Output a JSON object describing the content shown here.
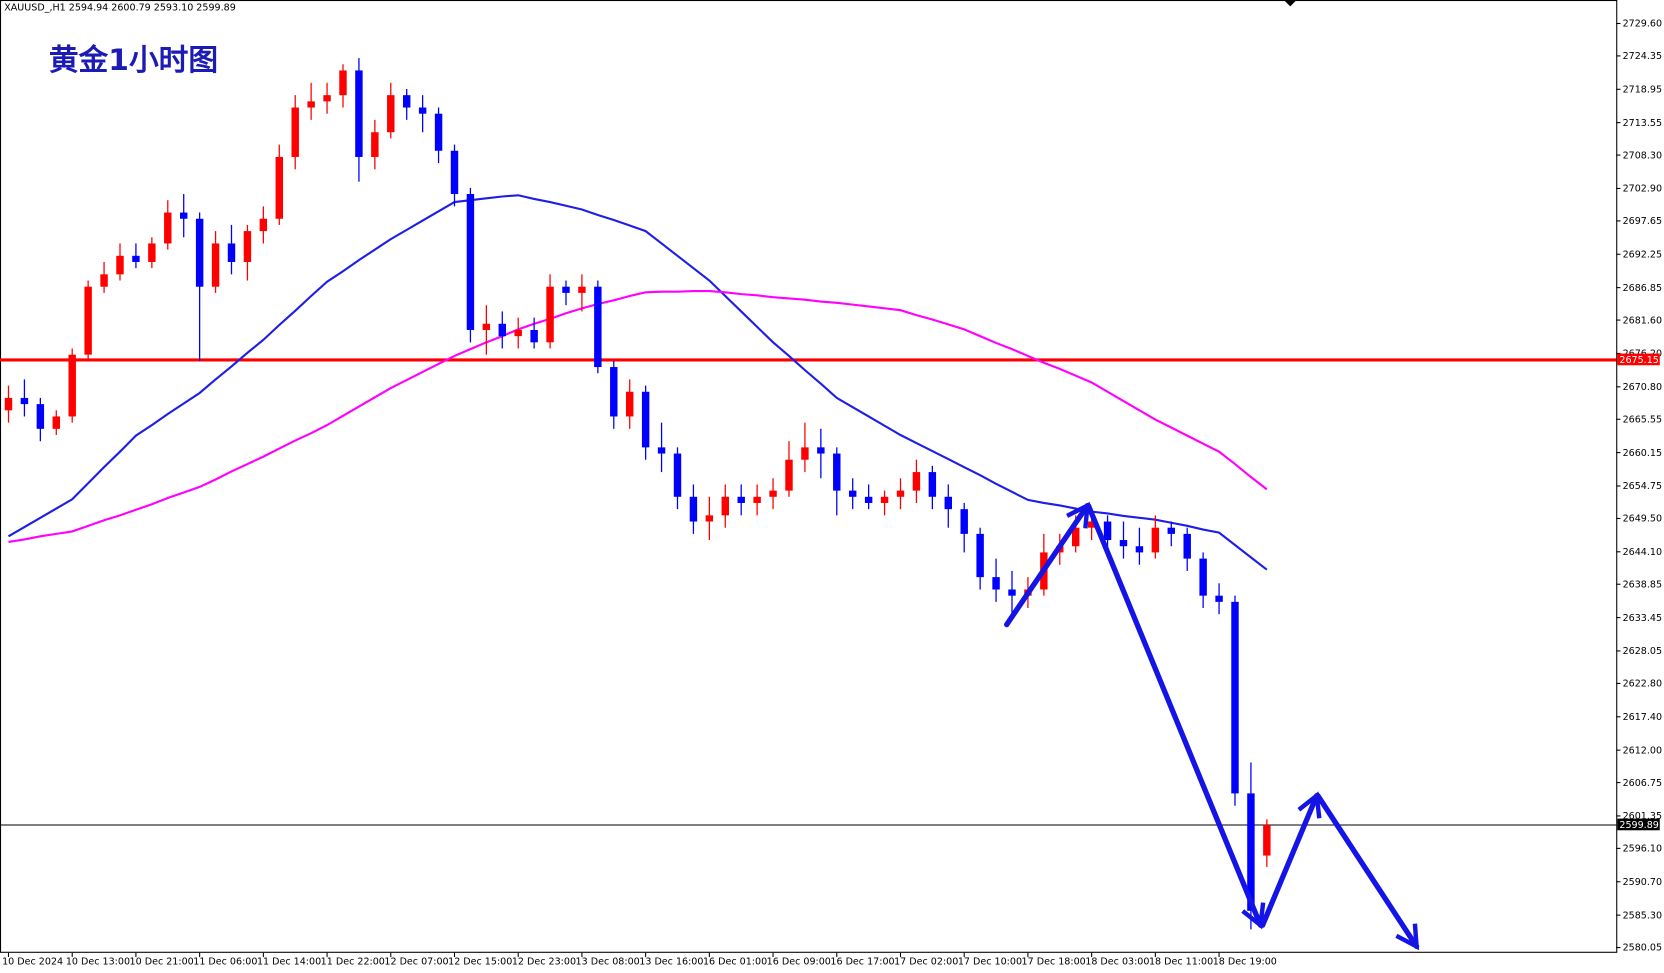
{
  "chart_data": {
    "type": "candlestick",
    "title": "黄金1小时图",
    "header": "XAUUSD_,H1  2594.94 2600.79 2593.10 2599.89",
    "up_color": "#ff0000",
    "down_color": "#0000ff",
    "ylim": [
      2579.2,
      2733.4
    ],
    "yticks": [
      {
        "value": 2729.6,
        "label": "2729.60"
      },
      2724.35,
      2718.95,
      2713.55,
      {
        "value": 2708.3,
        "label": "2708.30"
      },
      {
        "value": 2702.9,
        "label": "2702.90"
      },
      2697.65,
      2692.25,
      2686.85,
      {
        "value": 2681.6,
        "label": "2681.60"
      },
      {
        "value": 2676.2,
        "label": "2676.20"
      },
      {
        "value": 2670.8,
        "label": "2670.80"
      },
      2665.55,
      2660.15,
      2654.75,
      {
        "value": 2649.5,
        "label": "2649.50"
      },
      {
        "value": 2644.1,
        "label": "2644.10"
      },
      2638.85,
      2633.45,
      2628.05,
      {
        "value": 2622.8,
        "label": "2622.80"
      },
      {
        "value": 2617.4,
        "label": "2617.40"
      },
      {
        "value": 2612,
        "label": "2612.00"
      },
      2606.75,
      2601.35,
      {
        "value": 2596.1,
        "label": "2596.10"
      },
      {
        "value": 2590.7,
        "label": "2590.70"
      },
      {
        "value": 2585.3,
        "label": "2585.30"
      },
      2580.05
    ],
    "hlines": [
      {
        "value": 2675.15,
        "color": "#ff0000"
      },
      {
        "value": 2599.89,
        "color": "#000000"
      }
    ],
    "categories": [
      "10 Dec 2024",
      null,
      null,
      null,
      "10 Dec 13:00",
      null,
      null,
      null,
      "10 Dec 21:00",
      null,
      null,
      null,
      "11 Dec 06:00",
      null,
      null,
      null,
      "11 Dec 14:00",
      null,
      null,
      null,
      "11 Dec 22:00",
      null,
      null,
      null,
      "12 Dec 07:00",
      null,
      null,
      null,
      "12 Dec 15:00",
      null,
      null,
      null,
      "12 Dec 23:00",
      null,
      null,
      null,
      "13 Dec 08:00",
      null,
      null,
      null,
      "13 Dec 16:00",
      null,
      null,
      null,
      "16 Dec 01:00",
      null,
      null,
      null,
      "16 Dec 09:00",
      null,
      null,
      null,
      "16 Dec 17:00",
      null,
      null,
      null,
      "17 Dec 02:00",
      null,
      null,
      null,
      "17 Dec 10:00",
      null,
      null,
      null,
      "17 Dec 18:00",
      null,
      null,
      null,
      "18 Dec 03:00",
      null,
      null,
      null,
      "18 Dec 11:00",
      null,
      null,
      null,
      "18 Dec 19:00",
      null,
      null,
      null
    ],
    "ohlc": [
      [
        2667,
        2671,
        2665,
        2669
      ],
      [
        2669,
        2672,
        2666,
        2668
      ],
      [
        2668,
        2669,
        2662,
        2664
      ],
      [
        2664,
        2667,
        2663,
        2666
      ],
      [
        2666,
        2677,
        2665,
        2676
      ],
      [
        2676,
        2688,
        2675,
        2687
      ],
      [
        2687,
        2691,
        2686,
        2689
      ],
      [
        2689,
        2694,
        2688,
        2692
      ],
      [
        2692,
        2694,
        2690,
        2691
      ],
      [
        2691,
        2695,
        2690,
        2694
      ],
      [
        2694,
        2701,
        2693,
        2699
      ],
      [
        2699,
        2702,
        2695,
        2698
      ],
      [
        2698,
        2699,
        2675,
        2687
      ],
      [
        2687,
        2696,
        2686,
        2694
      ],
      [
        2694,
        2697,
        2689,
        2691
      ],
      [
        2691,
        2697,
        2688,
        2696
      ],
      [
        2696,
        2700,
        2694,
        2698
      ],
      [
        2698,
        2710,
        2697,
        2708
      ],
      [
        2708,
        2718,
        2706,
        2716
      ],
      [
        2716,
        2720,
        2714,
        2717
      ],
      [
        2717,
        2720,
        2715,
        2718
      ],
      [
        2718,
        2723,
        2716,
        2722
      ],
      [
        2722,
        2724,
        2704,
        2708
      ],
      [
        2708,
        2714,
        2706,
        2712
      ],
      [
        2712,
        2720,
        2711,
        2718
      ],
      [
        2718,
        2719,
        2714,
        2716
      ],
      [
        2716,
        2718,
        2712,
        2715
      ],
      [
        2715,
        2716,
        2707,
        2709
      ],
      [
        2709,
        2710,
        2700,
        2702
      ],
      [
        2702,
        2703,
        2678,
        2680
      ],
      [
        2680,
        2684,
        2676,
        2681
      ],
      [
        2681,
        2683,
        2677,
        2679
      ],
      [
        2679,
        2682,
        2677,
        2680
      ],
      [
        2680,
        2682,
        2677,
        2678
      ],
      [
        2678,
        2689,
        2677,
        2687
      ],
      [
        2687,
        2688,
        2684,
        2686
      ],
      [
        2686,
        2689,
        2683,
        2687
      ],
      [
        2687,
        2688,
        2673,
        2674
      ],
      [
        2674,
        2675,
        2664,
        2666
      ],
      [
        2666,
        2672,
        2664,
        2670
      ],
      [
        2670,
        2671,
        2659,
        2661
      ],
      [
        2661,
        2665,
        2657,
        2660
      ],
      [
        2660,
        2661,
        2651,
        2653
      ],
      [
        2653,
        2655,
        2647,
        2649
      ],
      [
        2649,
        2653,
        2646,
        2650
      ],
      [
        2650,
        2655,
        2648,
        2653
      ],
      [
        2653,
        2655,
        2650,
        2652
      ],
      [
        2652,
        2655,
        2650,
        2653
      ],
      [
        2653,
        2656,
        2651,
        2654
      ],
      [
        2654,
        2662,
        2653,
        2659
      ],
      [
        2659,
        2665,
        2657,
        2661
      ],
      [
        2661,
        2664,
        2656,
        2660
      ],
      [
        2660,
        2661,
        2650,
        2654
      ],
      [
        2654,
        2656,
        2651,
        2653
      ],
      [
        2653,
        2655,
        2651,
        2652
      ],
      [
        2652,
        2654,
        2650,
        2653
      ],
      [
        2653,
        2656,
        2651,
        2654
      ],
      [
        2654,
        2659,
        2652,
        2657
      ],
      [
        2657,
        2658,
        2651,
        2653
      ],
      [
        2653,
        2655,
        2648,
        2651
      ],
      [
        2651,
        2652,
        2644,
        2647
      ],
      [
        2647,
        2648,
        2638,
        2640
      ],
      [
        2640,
        2643,
        2636,
        2638
      ],
      [
        2638,
        2641,
        2634,
        2637
      ],
      [
        2637,
        2640,
        2635,
        2638
      ],
      [
        2638,
        2647,
        2637,
        2644
      ],
      [
        2644,
        2647,
        2642,
        2645
      ],
      [
        2645,
        2650,
        2644,
        2648
      ],
      [
        2648,
        2651,
        2646,
        2649
      ],
      [
        2649,
        2650,
        2644,
        2646
      ],
      [
        2646,
        2649,
        2643,
        2645
      ],
      [
        2645,
        2648,
        2642,
        2644
      ],
      [
        2644,
        2650,
        2643,
        2648
      ],
      [
        2648,
        2649,
        2645,
        2647
      ],
      [
        2647,
        2648,
        2641,
        2643
      ],
      [
        2643,
        2644,
        2635,
        2637
      ],
      [
        2637,
        2639,
        2634,
        2636
      ],
      [
        2636,
        2637,
        2603,
        2605
      ],
      [
        2605,
        2610,
        2583,
        2586
      ],
      [
        2594.94,
        2600.79,
        2593.1,
        2599.89
      ]
    ],
    "lines": [
      {
        "color": "#1e1ee6",
        "values": [
          2646.6,
          2648.1,
          2649.6,
          2651.1,
          2652.6,
          2655.2,
          2657.8,
          2660.3,
          2662.9,
          2664.6,
          2666.4,
          2668.1,
          2669.8,
          2672.0,
          2674.1,
          2676.3,
          2678.4,
          2680.8,
          2683.1,
          2685.5,
          2687.8,
          2689.5,
          2691.3,
          2693.0,
          2694.7,
          2696.2,
          2697.7,
          2699.2,
          2700.7,
          2701.0,
          2701.3,
          2701.6,
          2701.8,
          2701.2,
          2700.7,
          2700.1,
          2699.5,
          2698.6,
          2697.8,
          2696.9,
          2696.0,
          2694.0,
          2692.0,
          2690.0,
          2688.0,
          2685.5,
          2683.0,
          2680.5,
          2678.0,
          2675.8,
          2673.5,
          2671.3,
          2669.0,
          2667.5,
          2666.0,
          2664.5,
          2663.0,
          2661.7,
          2660.4,
          2659.1,
          2657.8,
          2656.5,
          2655.1,
          2653.8,
          2652.5,
          2652.0,
          2651.6,
          2651.1,
          2650.6,
          2650.3,
          2649.9,
          2649.6,
          2649.3,
          2648.8,
          2648.3,
          2647.7,
          2647.2,
          2645.2,
          2643.2,
          2641.2
        ]
      },
      {
        "color": "#ff00ff",
        "values": [
          2645.7,
          2646.1,
          2646.6,
          2647.0,
          2647.4,
          2648.3,
          2649.2,
          2650.0,
          2650.9,
          2651.8,
          2652.8,
          2653.7,
          2654.6,
          2655.8,
          2657.1,
          2658.3,
          2659.5,
          2660.8,
          2662.1,
          2663.3,
          2664.6,
          2666.1,
          2667.6,
          2669.1,
          2670.6,
          2671.9,
          2673.2,
          2674.5,
          2675.8,
          2676.9,
          2678.0,
          2679.0,
          2680.1,
          2681.0,
          2681.8,
          2682.7,
          2683.5,
          2684.2,
          2684.8,
          2685.5,
          2686.1,
          2686.2,
          2686.2,
          2686.3,
          2686.3,
          2686.1,
          2685.8,
          2685.6,
          2685.3,
          2685.1,
          2684.9,
          2684.6,
          2684.4,
          2684.1,
          2683.8,
          2683.5,
          2683.2,
          2682.4,
          2681.7,
          2680.9,
          2680.1,
          2679.0,
          2677.9,
          2676.9,
          2675.8,
          2674.7,
          2673.7,
          2672.6,
          2671.5,
          2670.0,
          2668.5,
          2667.0,
          2665.5,
          2664.2,
          2662.9,
          2661.6,
          2660.3,
          2658.3,
          2656.2,
          2654.2
        ]
      }
    ]
  }
}
